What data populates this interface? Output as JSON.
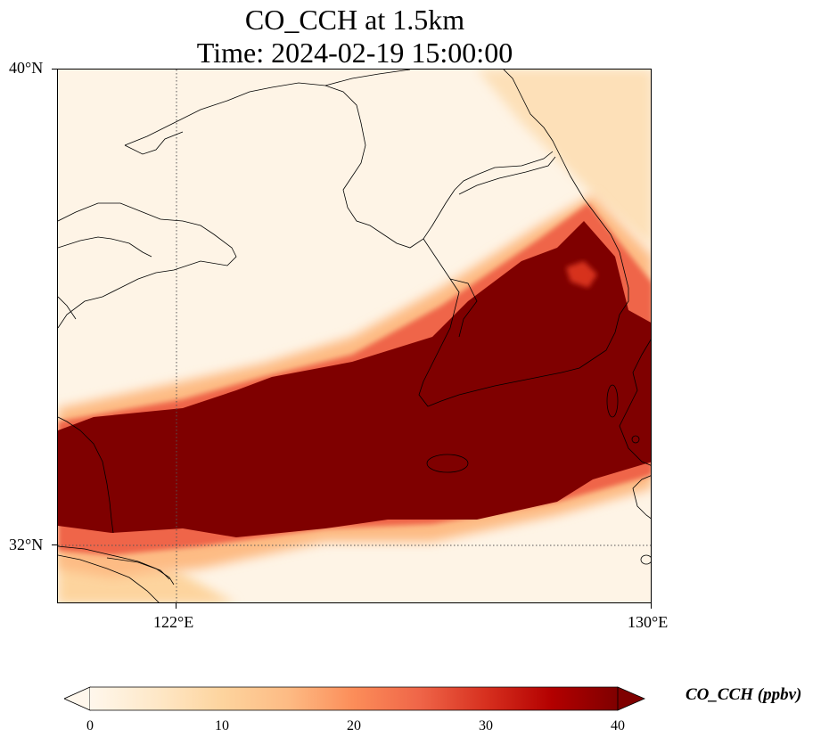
{
  "title": {
    "line1": "CO_CCH at 1.5km",
    "line2": "Time: 2024-02-19 15:00:00"
  },
  "map": {
    "extent": {
      "lon_min": 120,
      "lon_max": 130,
      "lat_min": 31,
      "lat_max": 40
    },
    "lat_ticks": [
      {
        "value": 40,
        "label": "40°N"
      },
      {
        "value": 32,
        "label": "32°N"
      }
    ],
    "lon_ticks": [
      {
        "value": 122,
        "label": "122°E"
      },
      {
        "value": 130,
        "label": "130°E"
      }
    ],
    "gridlines": {
      "lon": 122,
      "lat": 32,
      "style": "dotted"
    },
    "field_description_colors": {
      "high": "#7f0000",
      "mid_high": "#d7301f",
      "mid": "#fc8d59",
      "low": "#fdd49e",
      "background": "#fef4e6"
    }
  },
  "colorbar": {
    "label": "CO_CCH (ppbv)",
    "min": 0,
    "max": 40,
    "extend": "both",
    "ticks": [
      "0",
      "10",
      "20",
      "30",
      "40"
    ],
    "colormap": "OrRd",
    "stops": [
      "#fff7ec",
      "#fee8c8",
      "#fdd49e",
      "#fdbb84",
      "#fc8d59",
      "#ef6548",
      "#d7301f",
      "#b30000",
      "#7f0000"
    ]
  }
}
